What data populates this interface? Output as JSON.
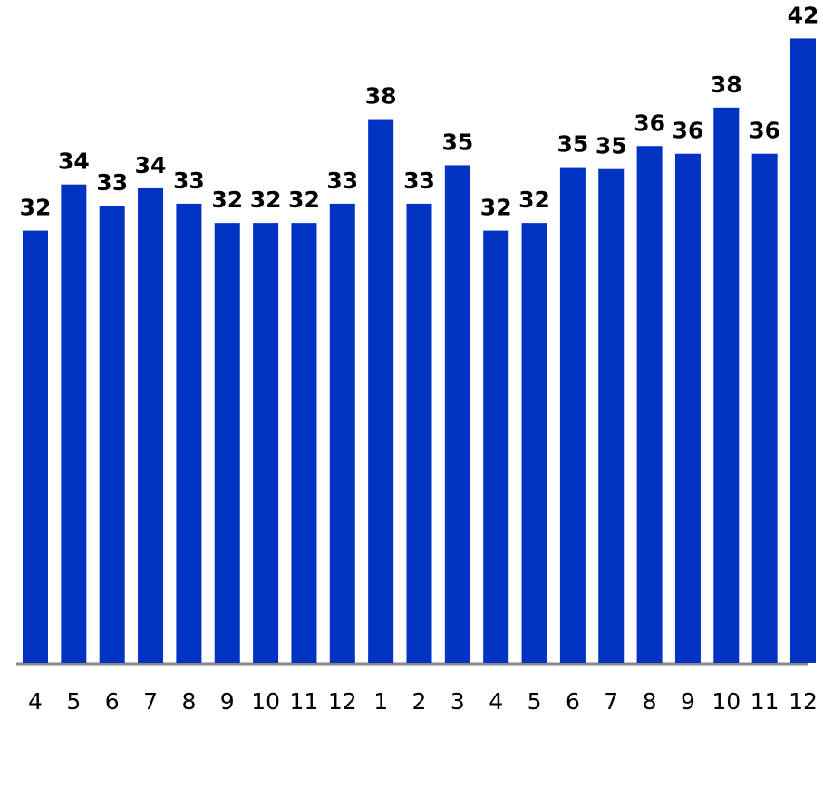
{
  "chart_data": {
    "type": "bar",
    "categories": [
      "4",
      "5",
      "6",
      "7",
      "8",
      "9",
      "10",
      "11",
      "12",
      "1",
      "2",
      "3",
      "4",
      "5",
      "6",
      "7",
      "8",
      "9",
      "10",
      "11",
      "12"
    ],
    "values": [
      32.0,
      34.4,
      33.3,
      34.2,
      33.4,
      32.4,
      32.4,
      32.4,
      33.4,
      37.8,
      33.4,
      35.4,
      32.0,
      32.4,
      35.3,
      35.2,
      36.4,
      36.0,
      38.4,
      36.0,
      42.0
    ],
    "value_labels": [
      "32",
      "34",
      "33",
      "34",
      "33",
      "32",
      "32",
      "32",
      "33",
      "38",
      "33",
      "35",
      "32",
      "32",
      "35",
      "35",
      "36",
      "36",
      "38",
      "36",
      "42"
    ],
    "color": "#0033c2",
    "ylim": [
      9.5,
      44
    ]
  }
}
